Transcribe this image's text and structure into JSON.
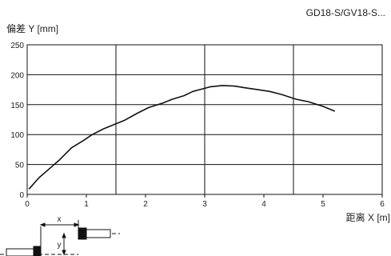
{
  "header": {
    "model": "GD18-S/GV18-S..."
  },
  "chart_data": {
    "type": "line",
    "ylabel": "偏差 Y [mm]",
    "xlabel": "距离 X [m]",
    "xlim": [
      0,
      6
    ],
    "ylim": [
      0,
      250
    ],
    "xticks": [
      "0",
      "1",
      "2",
      "3",
      "4",
      "5",
      "6"
    ],
    "yticks": [
      "0",
      "50",
      "100",
      "150",
      "200",
      "250"
    ],
    "grid": true,
    "series": [
      {
        "x": [
          0.03,
          0.2,
          0.4,
          0.55,
          0.75,
          0.95,
          1.1,
          1.3,
          1.5,
          1.65,
          1.85,
          2.05,
          2.3,
          2.45,
          2.65,
          2.8,
          2.95,
          3.1,
          3.3,
          3.5,
          3.7,
          3.9,
          4.1,
          4.3,
          4.55,
          4.75,
          5.0,
          5.2
        ],
        "y": [
          9,
          28,
          45,
          58,
          78,
          90,
          100,
          110,
          118,
          124,
          135,
          145,
          153,
          159,
          165,
          172,
          176,
          180,
          182,
          181,
          178,
          175,
          172,
          167,
          159,
          155,
          147,
          139
        ]
      }
    ],
    "line_color": "#111111"
  },
  "diagram": {
    "x_label": "x",
    "y_label": "y"
  }
}
